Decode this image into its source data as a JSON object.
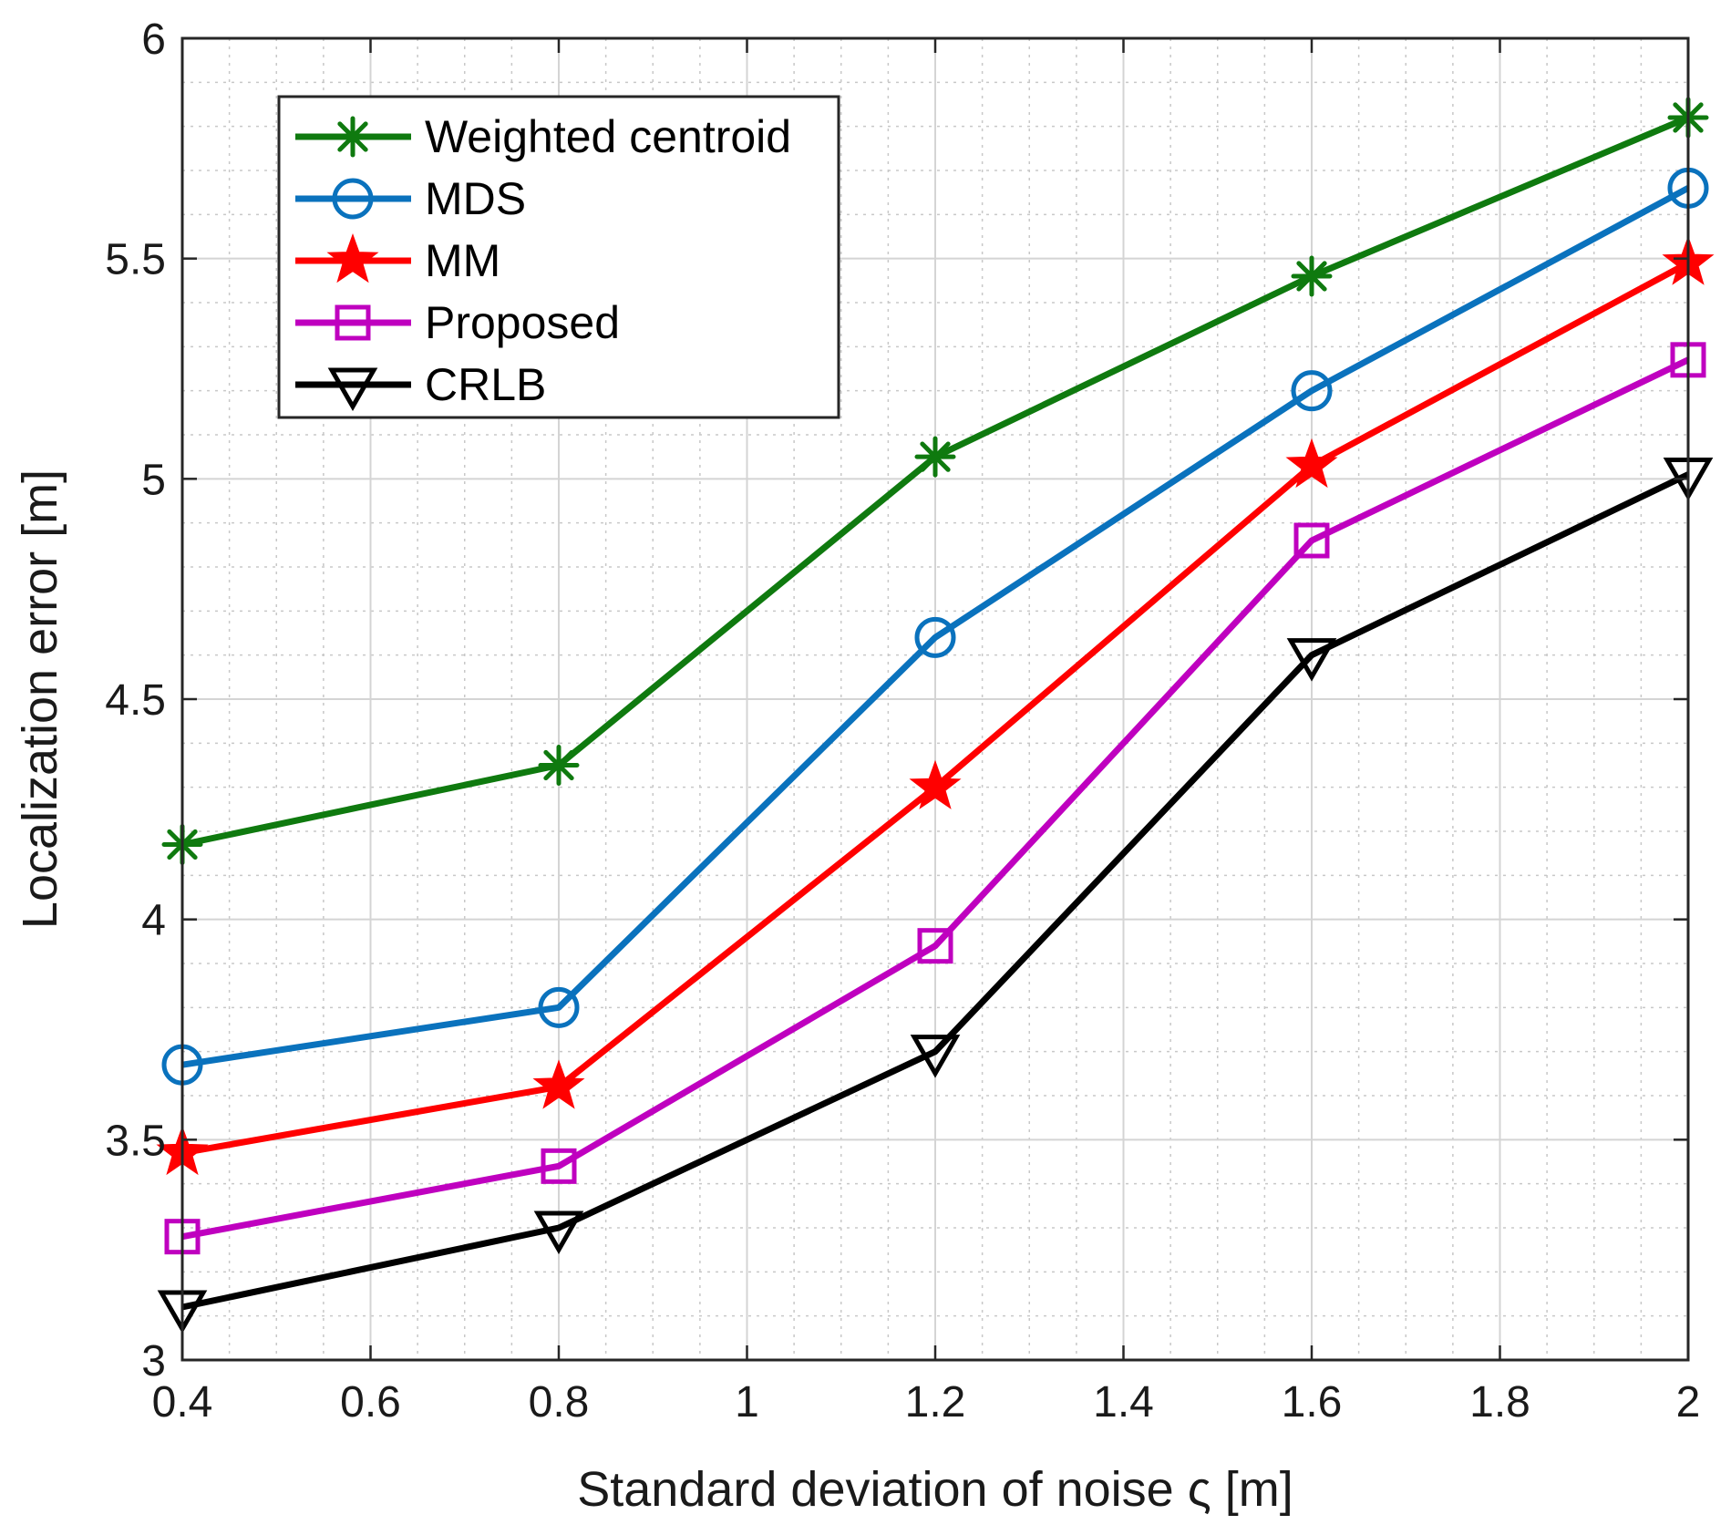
{
  "chart_data": {
    "type": "line",
    "xlabel": "Standard deviation of noise ς [m]",
    "ylabel": "Localization error [m]",
    "xlim": [
      0.4,
      2
    ],
    "ylim": [
      3,
      6
    ],
    "x_ticks": [
      "0.4",
      "0.6",
      "0.8",
      "1",
      "1.2",
      "1.4",
      "1.6",
      "1.8",
      "2"
    ],
    "y_ticks": [
      "3",
      "3.5",
      "4",
      "4.5",
      "5",
      "5.5",
      "6"
    ],
    "grid": true,
    "minor_grid": true,
    "legend_position": "top-left",
    "x": [
      0.4,
      0.8,
      1.2,
      1.6,
      2.0
    ],
    "series": [
      {
        "name": "Weighted centroid",
        "color": "#0f7a0f",
        "marker": "asterisk",
        "values": [
          4.17,
          4.35,
          5.05,
          5.46,
          5.82
        ]
      },
      {
        "name": "MDS",
        "color": "#0a72bd",
        "marker": "circle",
        "values": [
          3.67,
          3.8,
          4.64,
          5.2,
          5.66
        ]
      },
      {
        "name": "MM",
        "color": "#ff0000",
        "marker": "star",
        "values": [
          3.47,
          3.62,
          4.3,
          5.03,
          5.49
        ]
      },
      {
        "name": "Proposed",
        "color": "#bf00bf",
        "marker": "square",
        "values": [
          3.28,
          3.44,
          3.94,
          4.86,
          5.27
        ]
      },
      {
        "name": "CRLB",
        "color": "#000000",
        "marker": "triangle-down",
        "values": [
          3.12,
          3.3,
          3.7,
          4.6,
          5.01
        ]
      }
    ]
  }
}
